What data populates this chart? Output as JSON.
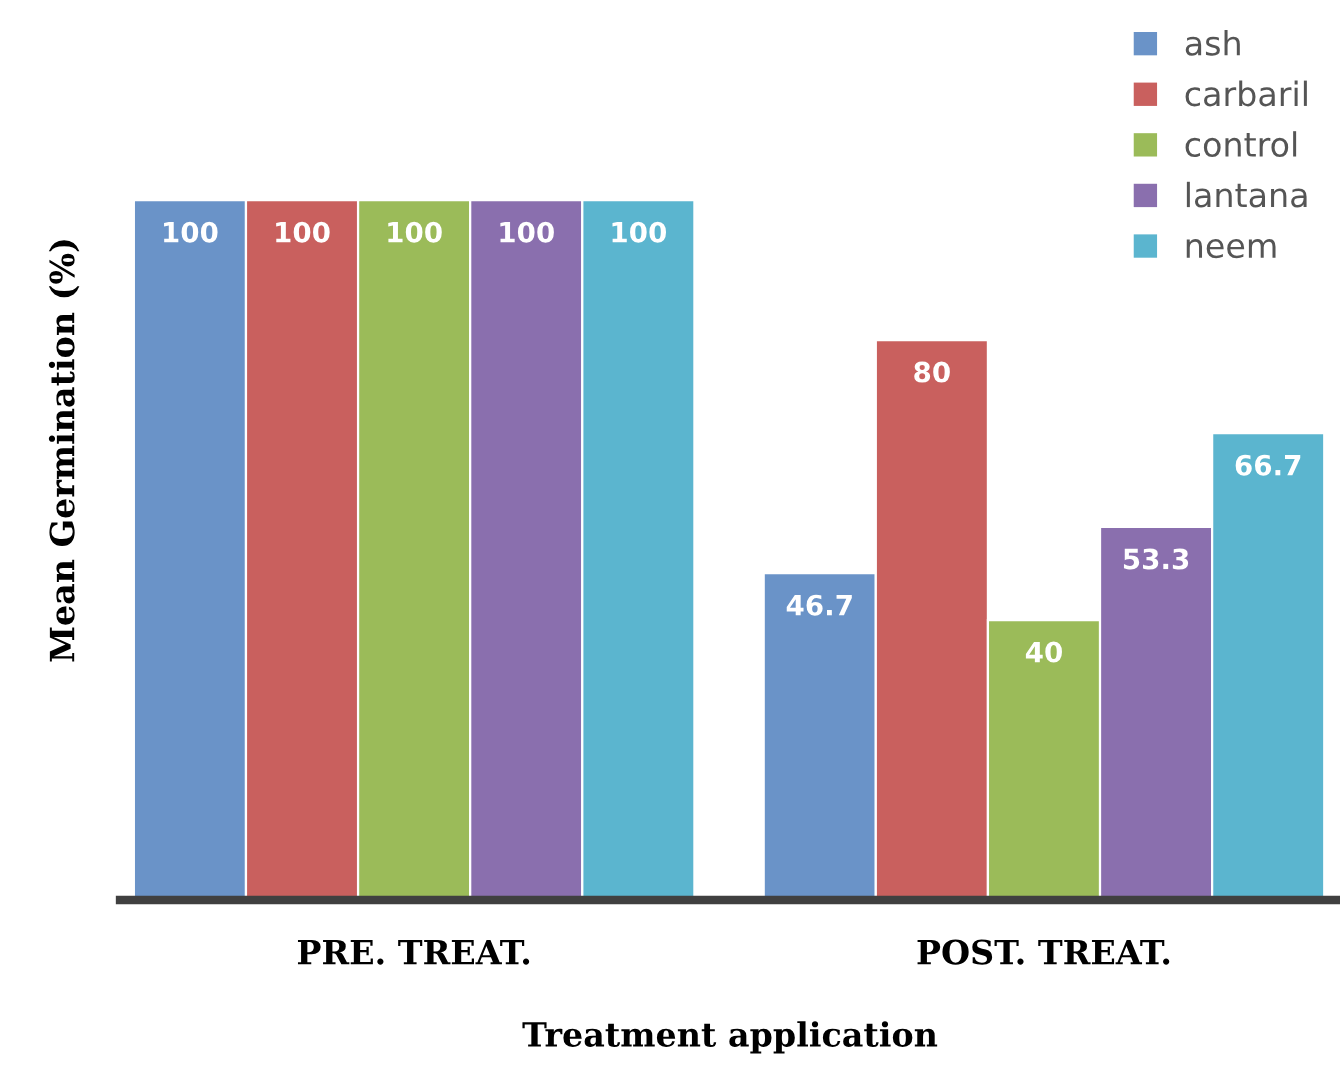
{
  "chart_data": {
    "type": "bar",
    "xlabel": "Treatment application",
    "ylabel": "Mean Germination (%)",
    "categories": [
      "PRE. TREAT.",
      "POST. TREAT."
    ],
    "series": [
      {
        "name": "ash",
        "color": "#6a93c8",
        "values": [
          100,
          46.7
        ]
      },
      {
        "name": "carbaril",
        "color": "#c9605e",
        "values": [
          100,
          80
        ]
      },
      {
        "name": "control",
        "color": "#9bbb59",
        "values": [
          100,
          40
        ]
      },
      {
        "name": "lantana",
        "color": "#8a6fae",
        "values": [
          100,
          53.3
        ]
      },
      {
        "name": "neem",
        "color": "#5bb5cf",
        "values": [
          100,
          66.7
        ]
      }
    ],
    "data_labels": true,
    "legend": "top right",
    "grid": false,
    "tick_labels": "x"
  }
}
